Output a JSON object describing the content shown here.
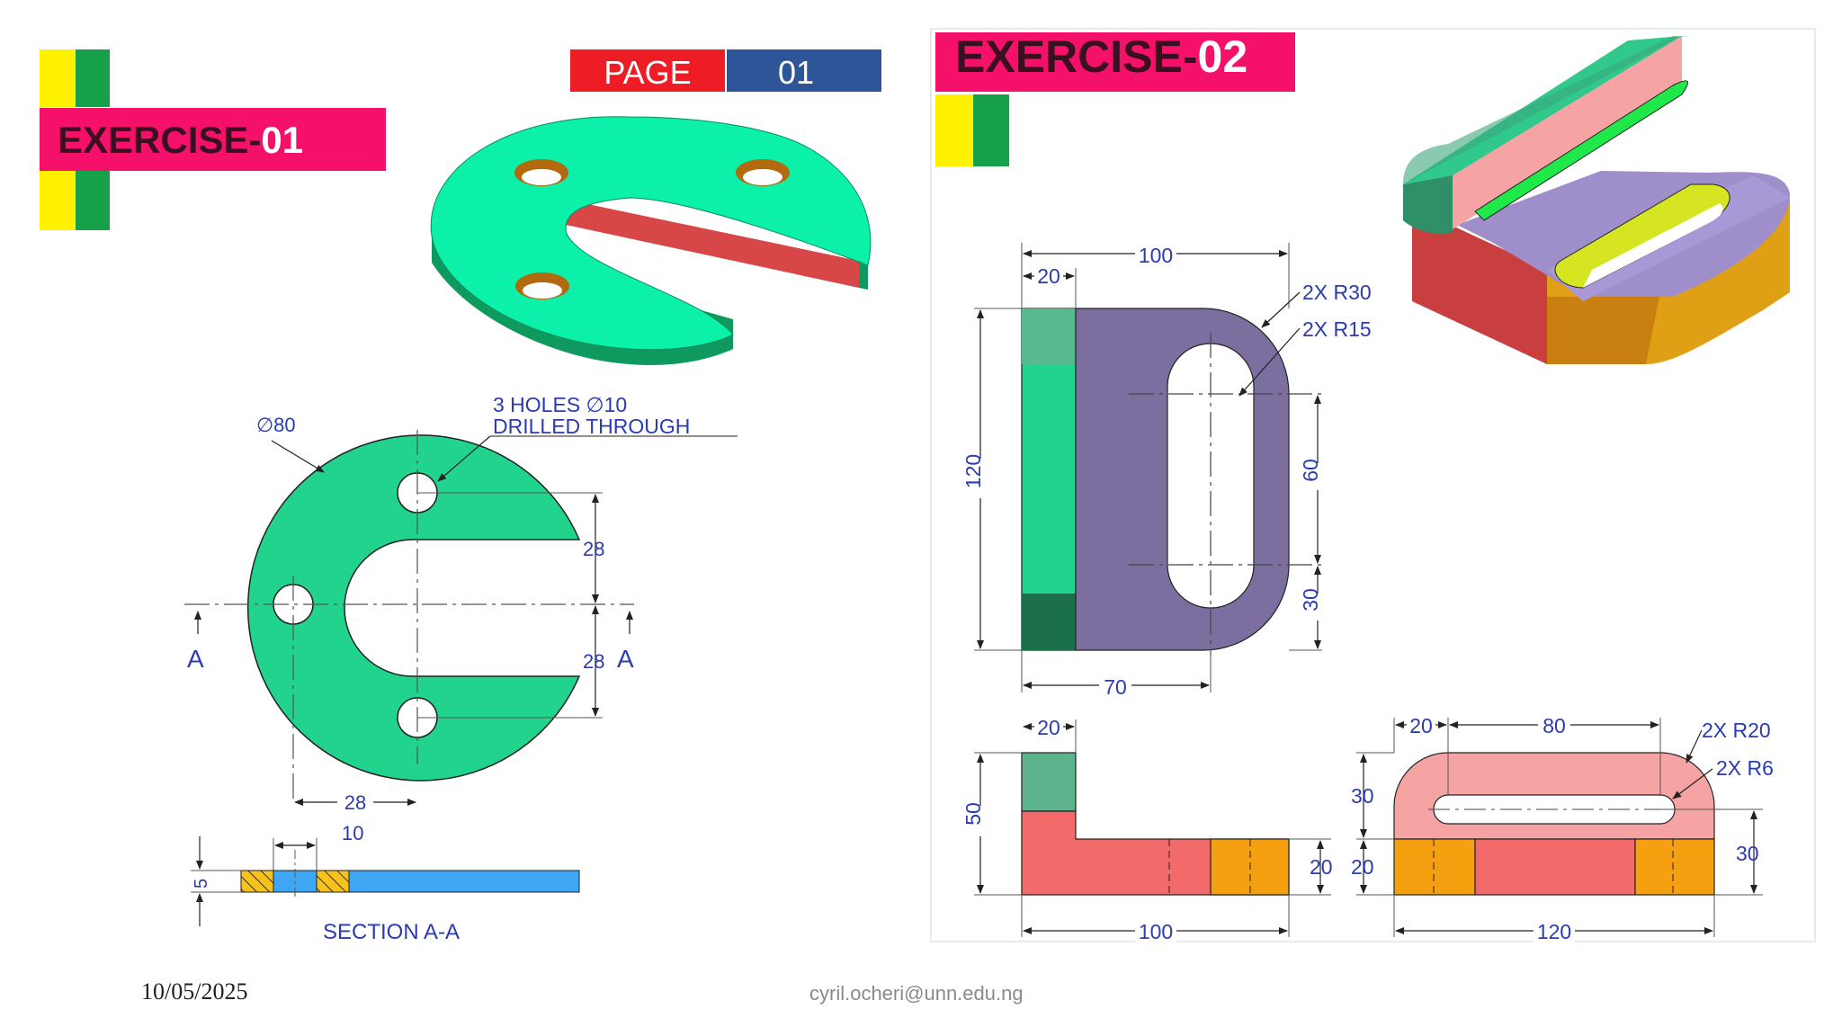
{
  "exercise1": {
    "title_prefix": "EXERCISE-",
    "title_number": "01",
    "page_label": "PAGE",
    "page_number": "01",
    "dim_diameter": "∅80",
    "holes_line1": "3 HOLES ∅10",
    "holes_line2": "DRILLED THROUGH",
    "dim_28_upper": "28",
    "dim_28_lower": "28",
    "dim_28_bottom": "28",
    "dim_10": "10",
    "dim_5": "5",
    "section_mark_left": "A",
    "section_mark_right": "A",
    "section_label": "SECTION A-A"
  },
  "exercise2": {
    "title_prefix": "EXERCISE-",
    "title_number": "02",
    "dim_100_top": "100",
    "dim_20_top": "20",
    "note_r30": "2X R30",
    "note_r15": "2X R15",
    "dim_120": "120",
    "dim_60": "60",
    "dim_30_right": "30",
    "dim_70": "70",
    "side_dim_20": "20",
    "side_dim_50": "50",
    "side_dim_20_right": "20",
    "side_dim_100": "100",
    "end_dim_20": "20",
    "end_dim_80": "80",
    "note_r20": "2X R20",
    "note_r6": "2X R6",
    "end_dim_30_left": "30",
    "end_dim_20_left": "20",
    "end_dim_30_right": "30",
    "end_dim_120": "120"
  },
  "footer": {
    "date": "10/05/2025",
    "email": "cyril.ocheri@unn.edu.ng"
  },
  "colors": {
    "title_banner": "#F5106A",
    "page_red": "#EE1C24",
    "page_blue": "#2E5597",
    "yellow_block": "#FFF200",
    "green_block": "#17A04A",
    "part1_green": "#22D38E",
    "part2_purple": "#7C6F9F",
    "part2_red": "#F26A6A",
    "part2_orange": "#F5A011",
    "dimension_blue": "#2B3BB0"
  }
}
